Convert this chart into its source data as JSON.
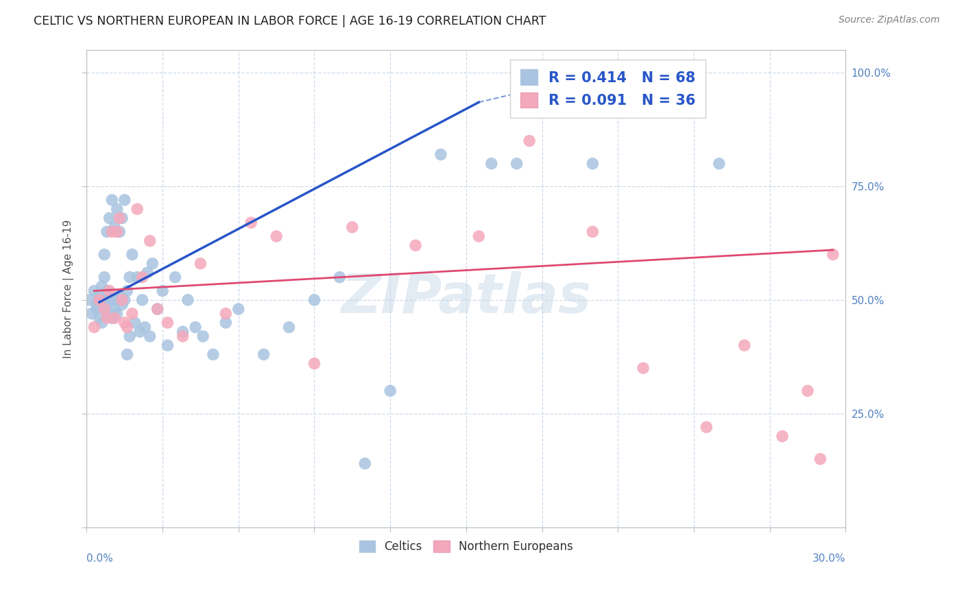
{
  "title": "CELTIC VS NORTHERN EUROPEAN IN LABOR FORCE | AGE 16-19 CORRELATION CHART",
  "source": "Source: ZipAtlas.com",
  "ylabel": "In Labor Force | Age 16-19",
  "celtics_R": 0.414,
  "celtics_N": 68,
  "northern_R": 0.091,
  "northern_N": 36,
  "x_min": 0.0,
  "x_max": 0.3,
  "y_min": 0.0,
  "y_max": 1.05,
  "celtics_color": "#a8c4e0",
  "northern_color": "#f4a8bb",
  "celtics_line_color": "#2855c8",
  "northern_line_color": "#e04870",
  "legend_text_color": "#2855c8",
  "watermark_color": "#c8d8e8",
  "bg_color": "#ffffff",
  "grid_color": "#c8d8e8",
  "axis_label_color": "#5080c0",
  "title_color": "#202020",
  "source_color": "#808080",
  "ylabel_color": "#505050",
  "celtics_x": [
    0.001,
    0.002,
    0.003,
    0.004,
    0.004,
    0.005,
    0.005,
    0.006,
    0.006,
    0.006,
    0.007,
    0.007,
    0.007,
    0.008,
    0.008,
    0.008,
    0.009,
    0.009,
    0.009,
    0.01,
    0.01,
    0.01,
    0.011,
    0.011,
    0.012,
    0.012,
    0.012,
    0.013,
    0.013,
    0.014,
    0.014,
    0.015,
    0.015,
    0.016,
    0.016,
    0.017,
    0.017,
    0.018,
    0.019,
    0.02,
    0.021,
    0.022,
    0.023,
    0.024,
    0.025,
    0.026,
    0.028,
    0.03,
    0.032,
    0.035,
    0.038,
    0.04,
    0.043,
    0.046,
    0.05,
    0.055,
    0.06,
    0.07,
    0.08,
    0.09,
    0.1,
    0.11,
    0.12,
    0.14,
    0.16,
    0.17,
    0.2,
    0.25
  ],
  "celtics_y": [
    0.5,
    0.47,
    0.52,
    0.49,
    0.48,
    0.46,
    0.51,
    0.45,
    0.5,
    0.53,
    0.48,
    0.55,
    0.6,
    0.49,
    0.52,
    0.65,
    0.47,
    0.5,
    0.68,
    0.46,
    0.5,
    0.72,
    0.48,
    0.66,
    0.47,
    0.5,
    0.7,
    0.51,
    0.65,
    0.49,
    0.68,
    0.5,
    0.72,
    0.52,
    0.38,
    0.55,
    0.42,
    0.6,
    0.45,
    0.55,
    0.43,
    0.5,
    0.44,
    0.56,
    0.42,
    0.58,
    0.48,
    0.52,
    0.4,
    0.55,
    0.43,
    0.5,
    0.44,
    0.42,
    0.38,
    0.45,
    0.48,
    0.38,
    0.44,
    0.5,
    0.55,
    0.14,
    0.3,
    0.82,
    0.8,
    0.8,
    0.8,
    0.8
  ],
  "northern_x": [
    0.003,
    0.005,
    0.007,
    0.008,
    0.009,
    0.01,
    0.011,
    0.012,
    0.013,
    0.014,
    0.015,
    0.016,
    0.018,
    0.02,
    0.022,
    0.025,
    0.028,
    0.032,
    0.038,
    0.045,
    0.055,
    0.065,
    0.075,
    0.09,
    0.105,
    0.13,
    0.155,
    0.175,
    0.2,
    0.22,
    0.245,
    0.26,
    0.275,
    0.285,
    0.29,
    0.295
  ],
  "northern_y": [
    0.44,
    0.5,
    0.48,
    0.46,
    0.52,
    0.65,
    0.46,
    0.65,
    0.68,
    0.5,
    0.45,
    0.44,
    0.47,
    0.7,
    0.55,
    0.63,
    0.48,
    0.45,
    0.42,
    0.58,
    0.47,
    0.67,
    0.64,
    0.36,
    0.66,
    0.62,
    0.64,
    0.85,
    0.65,
    0.35,
    0.22,
    0.4,
    0.2,
    0.3,
    0.15,
    0.6
  ],
  "celtics_line_x": [
    0.005,
    0.155
  ],
  "celtics_line_y": [
    0.495,
    0.935
  ],
  "northern_line_x": [
    0.003,
    0.295
  ],
  "northern_line_y": [
    0.52,
    0.61
  ]
}
